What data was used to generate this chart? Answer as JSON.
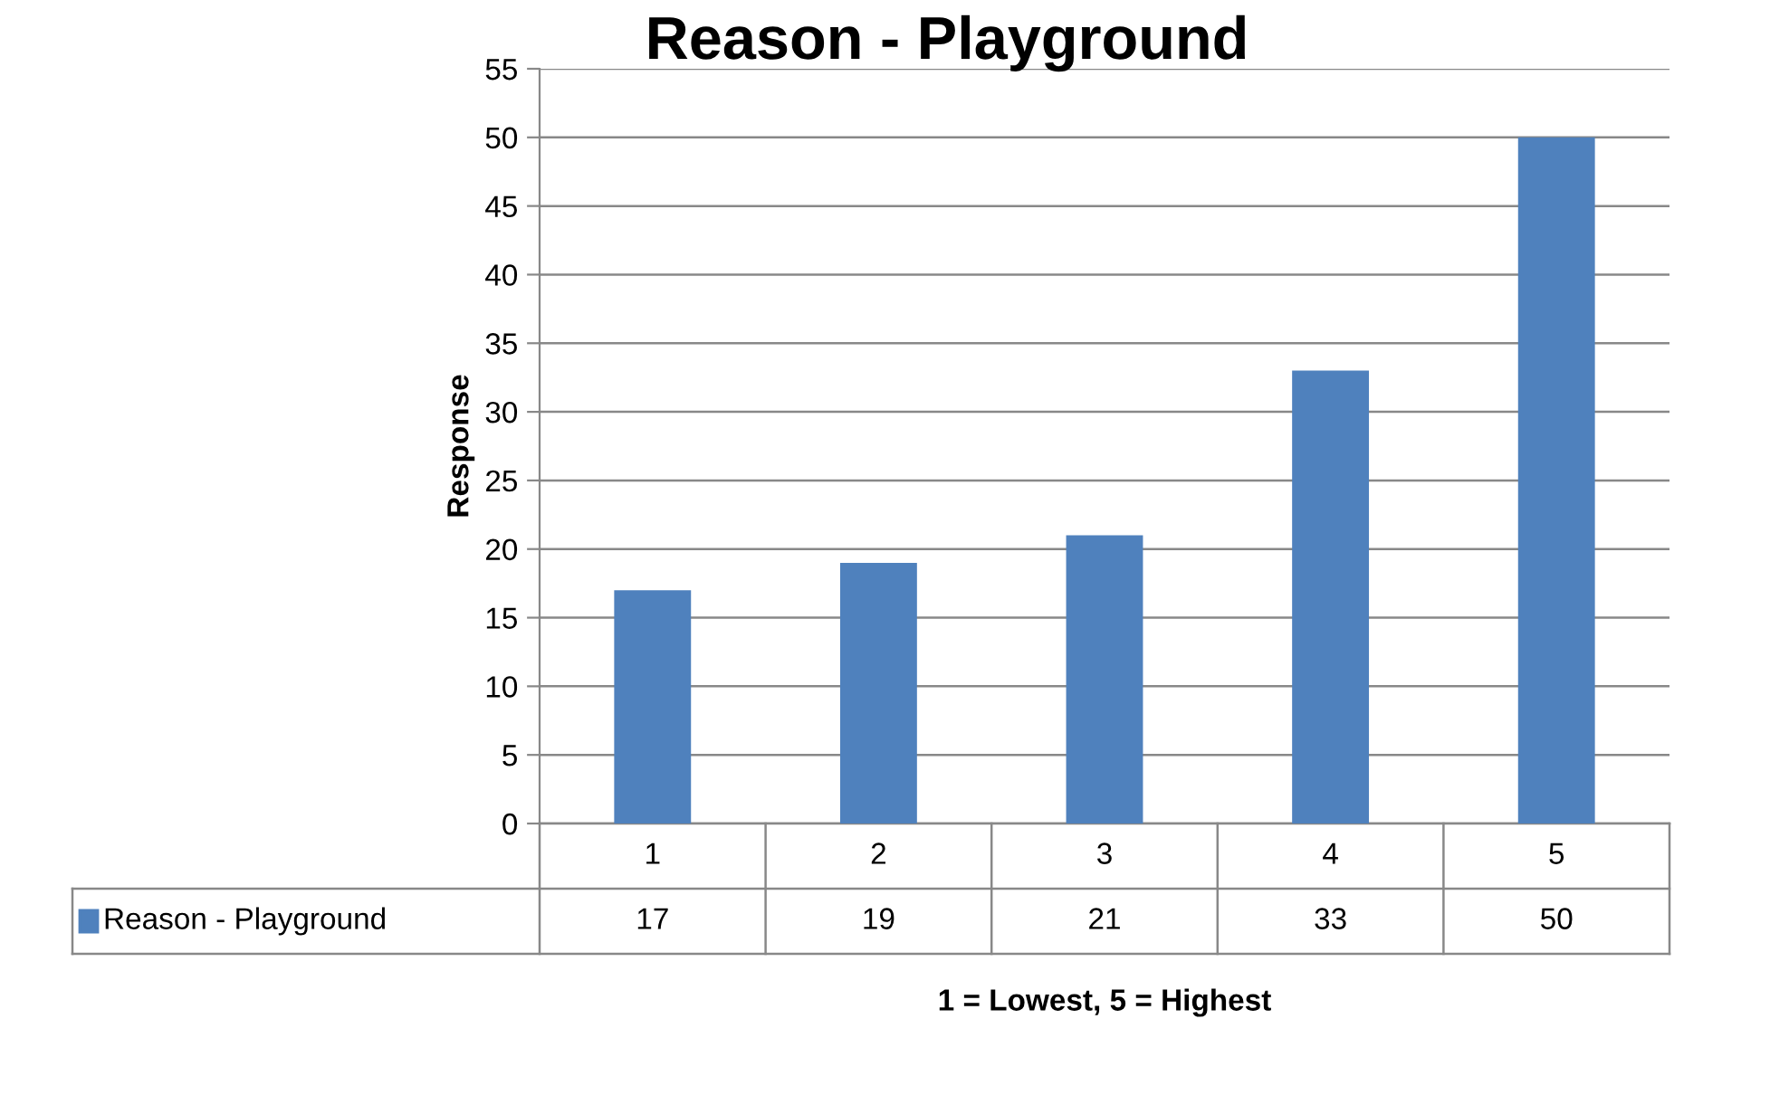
{
  "chart_data": {
    "type": "bar",
    "title": "Reason - Playground",
    "ylabel": "Response",
    "xlabel": "1 = Lowest, 5 = Highest",
    "categories": [
      "1",
      "2",
      "3",
      "4",
      "5"
    ],
    "series": [
      {
        "name": "Reason - Playground",
        "color": "#4f81bd",
        "values": [
          17,
          19,
          21,
          33,
          50
        ]
      }
    ],
    "ylim": [
      0,
      55
    ],
    "yticks": [
      0,
      5,
      10,
      15,
      20,
      25,
      30,
      35,
      40,
      45,
      50,
      55
    ],
    "grid": "y",
    "legend": "bottom",
    "data_labels": true
  }
}
